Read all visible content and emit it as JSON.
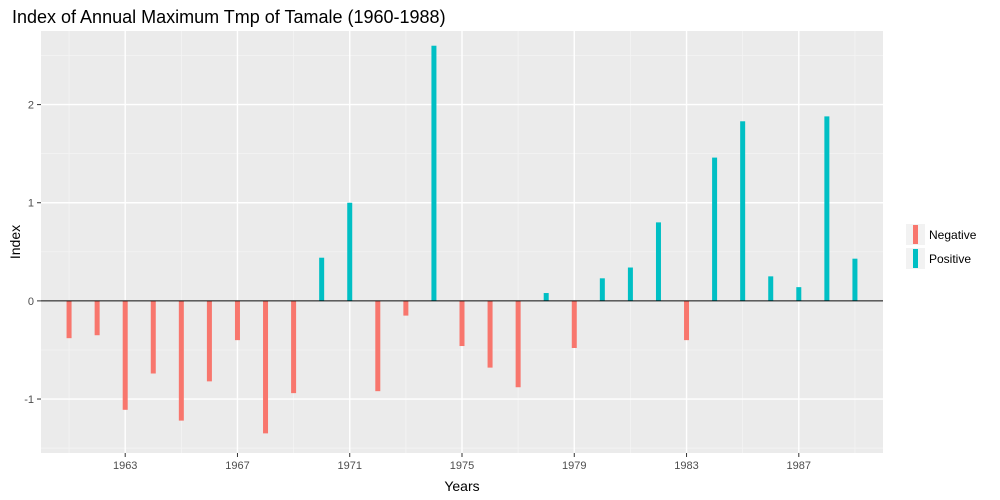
{
  "chart_data": {
    "type": "bar",
    "title": "Index of Annual Maximum Tmp of Tamale (1960-1988)",
    "xlabel": "Years",
    "ylabel": "Index",
    "xlim": [
      1960,
      1990
    ],
    "ylim": [
      -1.55,
      2.75
    ],
    "x_ticks": [
      1963,
      1967,
      1971,
      1975,
      1979,
      1983,
      1987
    ],
    "y_ticks": [
      -1,
      0,
      1,
      2
    ],
    "grid": true,
    "zero_line": true,
    "legend_position": "right",
    "legend": [
      {
        "name": "Negative",
        "color": "#F8766D"
      },
      {
        "name": "Positive",
        "color": "#00BFC4"
      }
    ],
    "x": [
      1961,
      1962,
      1963,
      1964,
      1965,
      1966,
      1967,
      1968,
      1969,
      1970,
      1971,
      1972,
      1973,
      1974,
      1975,
      1976,
      1977,
      1978,
      1979,
      1980,
      1981,
      1982,
      1983,
      1984,
      1985,
      1986,
      1987,
      1988,
      1989
    ],
    "values": [
      -0.38,
      -0.35,
      -1.11,
      -0.74,
      -1.22,
      -0.82,
      -0.4,
      -1.35,
      -0.94,
      0.44,
      1.0,
      -0.92,
      -0.15,
      2.6,
      -0.46,
      -0.68,
      -0.88,
      0.08,
      -0.48,
      0.23,
      0.34,
      0.8,
      -0.4,
      1.46,
      1.83,
      0.25,
      0.14,
      1.88,
      0.43
    ]
  }
}
